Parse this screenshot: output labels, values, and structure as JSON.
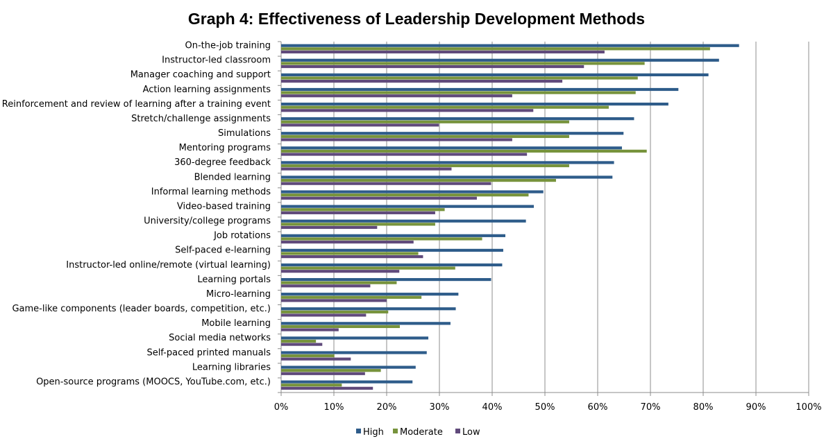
{
  "chart_data": {
    "type": "bar",
    "orientation": "horizontal",
    "title": "Graph 4: Effectiveness of Leadership Development Methods",
    "xlabel": "",
    "ylabel": "",
    "xlim": [
      0,
      100
    ],
    "x_tick_labels": [
      "0%",
      "10%",
      "20%",
      "30%",
      "40%",
      "50%",
      "60%",
      "70%",
      "80%",
      "90%",
      "100%"
    ],
    "grid": "vertical",
    "legend_position": "bottom",
    "categories": [
      "On-the-job training",
      "Instructor-led classroom",
      "Manager coaching and support",
      "Action learning assignments",
      "Reinforcement and review of learning after a training event",
      "Stretch/challenge assignments",
      "Simulations",
      "Mentoring programs",
      "360-degree feedback",
      "Blended learning",
      "Informal learning methods",
      "Video-based training",
      "University/college programs",
      "Job rotations",
      "Self-paced e-learning",
      "Instructor-led online/remote (virtual learning)",
      "Learning portals",
      "Micro-learning",
      "Game-like components (leader boards, competition, etc.)",
      "Mobile learning",
      "Social media networks",
      "Self-paced printed manuals",
      "Learning libraries",
      "Open-source programs (MOOCS, YouTube.com, etc.)"
    ],
    "series": [
      {
        "name": "High",
        "color": "#2E5C8A",
        "values": [
          86.8,
          83,
          81,
          75.3,
          73.4,
          66.9,
          64.9,
          64.6,
          63.1,
          62.8,
          49.7,
          47.9,
          46.4,
          42.5,
          42.1,
          41.9,
          39.8,
          33.6,
          33.1,
          32.1,
          27.9,
          27.6,
          25.5,
          24.9
        ]
      },
      {
        "name": "Moderate",
        "color": "#77933C",
        "values": [
          81.3,
          68.9,
          67.6,
          67.2,
          62.1,
          54.6,
          54.6,
          69.3,
          54.6,
          52.1,
          46.9,
          31,
          29.2,
          38.1,
          26,
          33,
          21.9,
          26.6,
          20.3,
          22.5,
          6.6,
          10.1,
          18.9,
          11.5
        ]
      },
      {
        "name": "Low",
        "color": "#604A7B",
        "values": [
          61.3,
          57.4,
          53.3,
          43.8,
          47.8,
          29.9,
          43.8,
          46.6,
          32.3,
          39.8,
          37.1,
          29.2,
          18.2,
          25.1,
          26.9,
          22.4,
          16.9,
          20,
          16.1,
          10.9,
          7.8,
          13.2,
          15.9,
          17.4
        ]
      }
    ]
  }
}
